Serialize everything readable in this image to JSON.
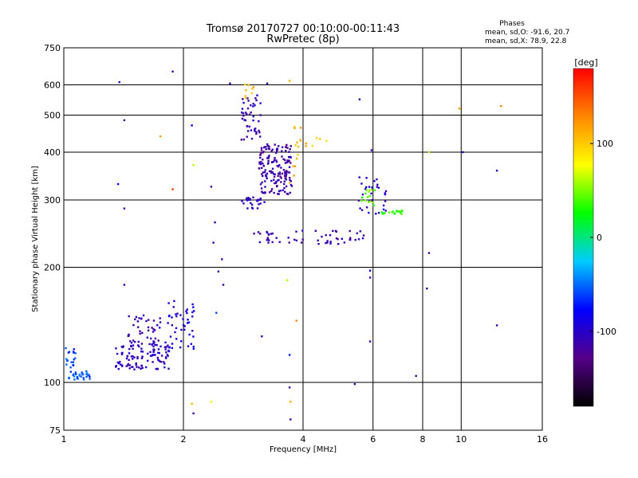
{
  "chart_data": {
    "type": "scatter",
    "title": "Tromsø 20170727 00:10:00-00:11:43",
    "subtitle": "RwPretec (8p)",
    "stats_title": "Phases",
    "stats_lines": [
      "mean, sd,O: -91.6, 20.7",
      "mean, sd,X:  78.9, 22.8"
    ],
    "xlabel": "Frequency [MHz]",
    "ylabel": "Stationary phase Virtual Height [km]",
    "x_scale": "log",
    "y_scale": "log",
    "xlim": [
      1,
      16
    ],
    "ylim": [
      75,
      750
    ],
    "x_ticks": [
      1,
      2,
      4,
      6,
      8,
      10,
      16
    ],
    "y_ticks": [
      75,
      100,
      200,
      300,
      400,
      500,
      600,
      750
    ],
    "x_grid": [
      2,
      4,
      6,
      8,
      10
    ],
    "y_grid": [
      100,
      200,
      300,
      400,
      500,
      600
    ],
    "grid": true,
    "colorbar": {
      "label": "[deg]",
      "range": [
        -180,
        180
      ],
      "ticks": [
        100,
        0,
        -100
      ],
      "colors": [
        "#000000",
        "#550088",
        "#0000ff",
        "#00ccff",
        "#00ff00",
        "#ffff00",
        "#ff8800",
        "#ff0000"
      ]
    },
    "clusters": [
      {
        "fmin": 1.0,
        "fmax": 1.07,
        "hmin": 108,
        "hmax": 125,
        "n": 18,
        "phase": -60
      },
      {
        "fmin": 1.03,
        "fmax": 1.17,
        "hmin": 101,
        "hmax": 107,
        "n": 30,
        "phase": -55
      },
      {
        "fmin": 1.35,
        "fmax": 1.85,
        "hmin": 108,
        "hmax": 128,
        "n": 110,
        "phase": -105
      },
      {
        "fmin": 1.45,
        "fmax": 1.75,
        "hmin": 125,
        "hmax": 150,
        "n": 40,
        "phase": -110
      },
      {
        "fmin": 1.8,
        "fmax": 2.15,
        "hmin": 122,
        "hmax": 165,
        "n": 45,
        "phase": -95
      },
      {
        "fmin": 2.8,
        "fmax": 3.15,
        "hmin": 430,
        "hmax": 570,
        "n": 45,
        "phase": -110
      },
      {
        "fmin": 2.85,
        "fmax": 3.05,
        "hmin": 540,
        "hmax": 620,
        "n": 8,
        "phase": 110
      },
      {
        "fmin": 3.1,
        "fmax": 3.75,
        "hmin": 310,
        "hmax": 420,
        "n": 160,
        "phase": -115
      },
      {
        "fmin": 2.8,
        "fmax": 3.2,
        "hmin": 285,
        "hmax": 305,
        "n": 25,
        "phase": -105
      },
      {
        "fmin": 3.7,
        "fmax": 4.0,
        "hmin": 330,
        "hmax": 480,
        "n": 14,
        "phase": 110
      },
      {
        "fmin": 3.0,
        "fmax": 5.7,
        "hmin": 230,
        "hmax": 250,
        "n": 55,
        "phase": -110
      },
      {
        "fmin": 4.0,
        "fmax": 4.7,
        "hmin": 415,
        "hmax": 440,
        "n": 6,
        "phase": 105
      },
      {
        "fmin": 5.5,
        "fmax": 6.5,
        "hmin": 275,
        "hmax": 345,
        "n": 35,
        "phase": -100
      },
      {
        "fmin": 5.6,
        "fmax": 6.1,
        "hmin": 290,
        "hmax": 320,
        "n": 15,
        "phase": 45
      },
      {
        "fmin": 6.3,
        "fmax": 7.2,
        "hmin": 275,
        "hmax": 282,
        "n": 18,
        "phase": 30
      }
    ],
    "points": [
      {
        "f": 1.38,
        "h": 610,
        "phase": -110
      },
      {
        "f": 1.42,
        "h": 485,
        "phase": -110
      },
      {
        "f": 1.37,
        "h": 330,
        "phase": -80
      },
      {
        "f": 1.42,
        "h": 285,
        "phase": -110
      },
      {
        "f": 1.42,
        "h": 180,
        "phase": -110
      },
      {
        "f": 1.75,
        "h": 440,
        "phase": 120
      },
      {
        "f": 1.88,
        "h": 320,
        "phase": 160
      },
      {
        "f": 1.88,
        "h": 650,
        "phase": -110
      },
      {
        "f": 2.1,
        "h": 470,
        "phase": -80
      },
      {
        "f": 2.12,
        "h": 370,
        "phase": 60
      },
      {
        "f": 2.35,
        "h": 325,
        "phase": -110
      },
      {
        "f": 2.4,
        "h": 262,
        "phase": -110
      },
      {
        "f": 2.38,
        "h": 232,
        "phase": -110
      },
      {
        "f": 2.5,
        "h": 210,
        "phase": -110
      },
      {
        "f": 2.45,
        "h": 195,
        "phase": -110
      },
      {
        "f": 2.52,
        "h": 180,
        "phase": -110
      },
      {
        "f": 2.42,
        "h": 152,
        "phase": -60
      },
      {
        "f": 2.1,
        "h": 88,
        "phase": 110
      },
      {
        "f": 2.12,
        "h": 83,
        "phase": -110
      },
      {
        "f": 2.35,
        "h": 89,
        "phase": 70
      },
      {
        "f": 2.62,
        "h": 605,
        "phase": -110
      },
      {
        "f": 3.25,
        "h": 605,
        "phase": -110
      },
      {
        "f": 3.7,
        "h": 615,
        "phase": 110
      },
      {
        "f": 3.65,
        "h": 185,
        "phase": 60
      },
      {
        "f": 3.85,
        "h": 145,
        "phase": 130
      },
      {
        "f": 3.15,
        "h": 132,
        "phase": -110
      },
      {
        "f": 3.7,
        "h": 118,
        "phase": -70
      },
      {
        "f": 3.7,
        "h": 97,
        "phase": -110
      },
      {
        "f": 3.72,
        "h": 89,
        "phase": 110
      },
      {
        "f": 3.72,
        "h": 80,
        "phase": -110
      },
      {
        "f": 5.4,
        "h": 99,
        "phase": -110
      },
      {
        "f": 5.55,
        "h": 550,
        "phase": -110
      },
      {
        "f": 5.95,
        "h": 405,
        "phase": -110
      },
      {
        "f": 5.9,
        "h": 196,
        "phase": -80
      },
      {
        "f": 5.9,
        "h": 188,
        "phase": -110
      },
      {
        "f": 5.9,
        "h": 128,
        "phase": -110
      },
      {
        "f": 7.7,
        "h": 104,
        "phase": -110
      },
      {
        "f": 8.3,
        "h": 218,
        "phase": -110
      },
      {
        "f": 8.2,
        "h": 176,
        "phase": -110
      },
      {
        "f": 8.3,
        "h": 400,
        "phase": 60
      },
      {
        "f": 9.9,
        "h": 520,
        "phase": 120
      },
      {
        "f": 10.1,
        "h": 400,
        "phase": -100
      },
      {
        "f": 12.3,
        "h": 358,
        "phase": -110
      },
      {
        "f": 12.6,
        "h": 528,
        "phase": 130
      },
      {
        "f": 12.3,
        "h": 141,
        "phase": -110
      }
    ]
  }
}
